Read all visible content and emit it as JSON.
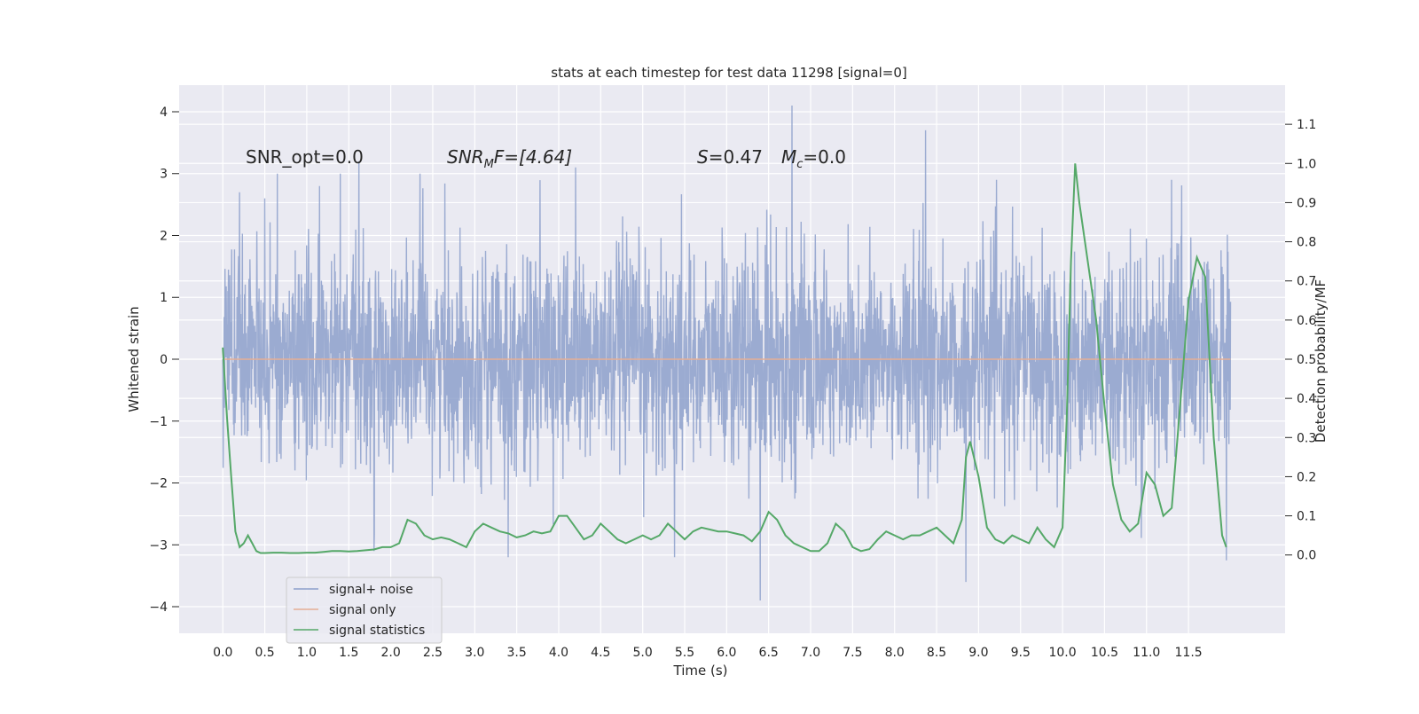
{
  "chart_data": {
    "type": "line",
    "title": "stats at each timestep for test data 11298 [signal=0]",
    "xlabel": "Time (s)",
    "ylabel": "Whitened strain",
    "y2label": "Detection probability/MF",
    "xlim": [
      -0.52,
      12.65
    ],
    "ylim": [
      -4.43,
      4.43
    ],
    "y2lim": [
      -0.2,
      1.2
    ],
    "xticks": [
      0.0,
      0.5,
      1.0,
      1.5,
      2.0,
      2.5,
      3.0,
      3.5,
      4.0,
      4.5,
      5.0,
      5.5,
      6.0,
      6.5,
      7.0,
      7.5,
      8.0,
      8.5,
      9.0,
      9.5,
      10.0,
      10.5,
      11.0,
      11.5
    ],
    "xtick_labels": [
      "0.0",
      "0.5",
      "1.0",
      "1.5",
      "2.0",
      "2.5",
      "3.0",
      "3.5",
      "4.0",
      "4.5",
      "5.0",
      "5.5",
      "6.0",
      "6.5",
      "7.0",
      "7.5",
      "8.0",
      "8.5",
      "9.0",
      "9.5",
      "10.0",
      "10.5",
      "11.0",
      "11.5"
    ],
    "yticks": [
      -4,
      -3,
      -2,
      -1,
      0,
      1,
      2,
      3,
      4
    ],
    "ytick_labels": [
      "−4",
      "−3",
      "−2",
      "−1",
      "0",
      "1",
      "2",
      "3",
      "4"
    ],
    "y2ticks": [
      0.0,
      0.1,
      0.2,
      0.3,
      0.4,
      0.5,
      0.6,
      0.7,
      0.8,
      0.9,
      1.0,
      1.1
    ],
    "y2tick_labels": [
      "0.0",
      "0.1",
      "0.2",
      "0.3",
      "0.4",
      "0.5",
      "0.6",
      "0.7",
      "0.8",
      "0.9",
      "1.0",
      "1.1"
    ],
    "grid": true,
    "legend_position": "lower-left",
    "series": [
      {
        "name": "signal+ noise",
        "axis": "left",
        "color": "#8da0cb",
        "kind": "noise",
        "x_range": [
          0.0,
          12.0
        ],
        "amplitude_sigma": 0.85,
        "peaks": [
          {
            "x": 0.2,
            "y": 2.7
          },
          {
            "x": 0.5,
            "y": 2.6
          },
          {
            "x": 0.65,
            "y": 3.0
          },
          {
            "x": 1.15,
            "y": 2.8
          },
          {
            "x": 1.4,
            "y": 3.0
          },
          {
            "x": 1.62,
            "y": 3.2
          },
          {
            "x": 2.35,
            "y": 3.0
          },
          {
            "x": 4.2,
            "y": 3.1
          },
          {
            "x": 6.78,
            "y": 4.1
          },
          {
            "x": 8.37,
            "y": 3.7
          },
          {
            "x": 11.3,
            "y": 2.9
          },
          {
            "x": 6.4,
            "y": -3.9
          },
          {
            "x": 8.85,
            "y": -3.6
          },
          {
            "x": 11.95,
            "y": -3.25
          },
          {
            "x": 5.38,
            "y": -3.2
          },
          {
            "x": 3.4,
            "y": -3.2
          },
          {
            "x": 1.8,
            "y": -3.1
          }
        ]
      },
      {
        "name": "signal only",
        "axis": "left",
        "color": "#e5ae95",
        "x": [
          0.0,
          12.0
        ],
        "y": [
          0.0,
          0.0
        ]
      },
      {
        "name": "signal statistics",
        "axis": "right",
        "color": "#55a868",
        "x": [
          0.0,
          0.05,
          0.1,
          0.15,
          0.2,
          0.25,
          0.3,
          0.35,
          0.4,
          0.45,
          0.5,
          0.6,
          0.7,
          0.8,
          0.9,
          1.0,
          1.1,
          1.2,
          1.3,
          1.4,
          1.5,
          1.6,
          1.7,
          1.8,
          1.9,
          2.0,
          2.1,
          2.2,
          2.3,
          2.4,
          2.5,
          2.6,
          2.7,
          2.8,
          2.9,
          3.0,
          3.1,
          3.2,
          3.3,
          3.4,
          3.5,
          3.6,
          3.7,
          3.8,
          3.9,
          4.0,
          4.1,
          4.2,
          4.3,
          4.4,
          4.5,
          4.6,
          4.7,
          4.8,
          4.9,
          5.0,
          5.1,
          5.2,
          5.3,
          5.4,
          5.5,
          5.6,
          5.7,
          5.8,
          5.9,
          6.0,
          6.1,
          6.2,
          6.3,
          6.4,
          6.5,
          6.6,
          6.7,
          6.8,
          6.9,
          7.0,
          7.1,
          7.2,
          7.3,
          7.4,
          7.5,
          7.6,
          7.7,
          7.8,
          7.9,
          8.0,
          8.1,
          8.2,
          8.3,
          8.4,
          8.5,
          8.6,
          8.7,
          8.8,
          8.85,
          8.9,
          9.0,
          9.1,
          9.2,
          9.3,
          9.4,
          9.5,
          9.6,
          9.7,
          9.8,
          9.9,
          10.0,
          10.05,
          10.1,
          10.15,
          10.2,
          10.3,
          10.4,
          10.5,
          10.6,
          10.7,
          10.8,
          10.9,
          11.0,
          11.1,
          11.2,
          11.3,
          11.4,
          11.5,
          11.6,
          11.7,
          11.8,
          11.9,
          11.95
        ],
        "y": [
          0.53,
          0.35,
          0.2,
          0.06,
          0.02,
          0.03,
          0.05,
          0.03,
          0.01,
          0.005,
          0.005,
          0.006,
          0.006,
          0.005,
          0.005,
          0.006,
          0.006,
          0.008,
          0.01,
          0.01,
          0.009,
          0.01,
          0.012,
          0.014,
          0.02,
          0.02,
          0.03,
          0.09,
          0.08,
          0.05,
          0.04,
          0.045,
          0.04,
          0.03,
          0.02,
          0.06,
          0.08,
          0.07,
          0.06,
          0.055,
          0.045,
          0.05,
          0.06,
          0.055,
          0.06,
          0.1,
          0.1,
          0.07,
          0.04,
          0.05,
          0.08,
          0.06,
          0.04,
          0.03,
          0.04,
          0.05,
          0.04,
          0.05,
          0.08,
          0.06,
          0.04,
          0.06,
          0.07,
          0.065,
          0.06,
          0.06,
          0.055,
          0.05,
          0.035,
          0.06,
          0.11,
          0.09,
          0.05,
          0.03,
          0.02,
          0.01,
          0.01,
          0.03,
          0.08,
          0.06,
          0.02,
          0.01,
          0.015,
          0.04,
          0.06,
          0.05,
          0.04,
          0.05,
          0.05,
          0.06,
          0.07,
          0.05,
          0.03,
          0.09,
          0.25,
          0.29,
          0.2,
          0.07,
          0.04,
          0.03,
          0.05,
          0.04,
          0.03,
          0.07,
          0.04,
          0.02,
          0.07,
          0.35,
          0.75,
          1.0,
          0.9,
          0.75,
          0.6,
          0.38,
          0.18,
          0.09,
          0.06,
          0.08,
          0.21,
          0.18,
          0.1,
          0.12,
          0.38,
          0.65,
          0.76,
          0.71,
          0.3,
          0.05,
          0.02
        ]
      }
    ],
    "annotations": {
      "snr_opt": "SNR_opt=0.0",
      "snr_mf_main": "SNR",
      "snr_mf_sub": "M",
      "snr_mf_rest": "F=[4.64]",
      "s_sym": "S",
      "s_val": "=0.47",
      "mc_sym": "M",
      "mc_sub": "c",
      "mc_val": "=0.0"
    },
    "colors": {
      "axes_bg": "#eaeaf2",
      "grid": "#ffffff",
      "noise": "#8da0cb",
      "signal": "#e5ae95",
      "stats": "#55a868"
    }
  }
}
